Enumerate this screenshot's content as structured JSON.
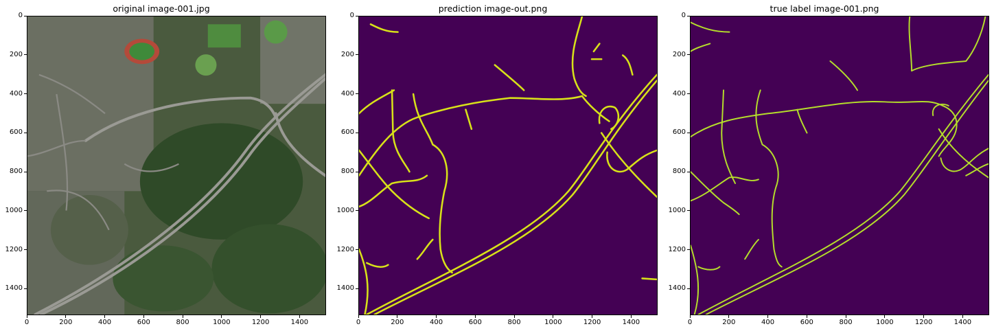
{
  "panels": [
    {
      "title": "original image-001.jpg"
    },
    {
      "title": "prediction image-out.png"
    },
    {
      "title": "true label image-001.png"
    }
  ],
  "axes": {
    "x_ticks": [
      "0",
      "200",
      "400",
      "600",
      "800",
      "1000",
      "1200",
      "1400"
    ],
    "y_ticks": [
      "0",
      "200",
      "400",
      "600",
      "800",
      "1000",
      "1200",
      "1400"
    ],
    "x_tick_values": [
      0,
      200,
      400,
      600,
      800,
      1000,
      1200,
      1400
    ],
    "y_tick_values": [
      0,
      200,
      400,
      600,
      800,
      1000,
      1200,
      1400
    ],
    "range": [
      0,
      1536
    ]
  },
  "colors": {
    "mask_background": "#440154",
    "mask_road": "#d8e219",
    "label_road": "#b5de2b"
  }
}
